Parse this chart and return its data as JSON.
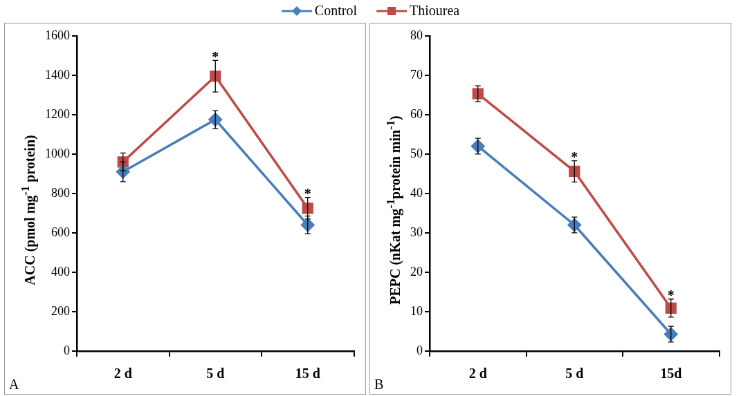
{
  "chart_data": [
    {
      "type": "line",
      "categories": [
        "2 d",
        "5 d",
        "15 d"
      ],
      "ylabel": "ACC (pmol mg$^{-1}$ protein)",
      "ylim": [
        0,
        1600
      ],
      "yticks": [
        0,
        200,
        400,
        600,
        800,
        1000,
        1200,
        1400,
        1600
      ],
      "grid": false,
      "legend": "top",
      "series": [
        {
          "name": "Control",
          "color": "#4a7ebb",
          "marker": "diamond",
          "values": [
            910,
            1175,
            640
          ],
          "errors": [
            50,
            45,
            45
          ]
        },
        {
          "name": "Thiourea",
          "color": "#be4b48",
          "marker": "square",
          "values": [
            960,
            1395,
            725
          ],
          "errors": [
            45,
            80,
            55
          ]
        }
      ],
      "annotations": [
        "A",
        {
          "text": "*",
          "x": "5 d",
          "y": 1475
        },
        {
          "text": "*",
          "x": "15 d",
          "y": 780
        }
      ]
    },
    {
      "type": "line",
      "categories": [
        "2 d",
        "5 d",
        "15d"
      ],
      "ylabel": "PEPC (nKat mg$^{-1}$protein min$^{-1}$)",
      "ylim": [
        0,
        80
      ],
      "yticks": [
        0,
        10,
        20,
        30,
        40,
        50,
        60,
        70,
        80
      ],
      "grid": false,
      "series": [
        {
          "color": "#4a7ebb",
          "marker": "diamond",
          "values": [
            52,
            32,
            4.3
          ],
          "errors": [
            2,
            2,
            2
          ]
        },
        {
          "color": "#be4b48",
          "marker": "square",
          "values": [
            65.3,
            45.6,
            10.9
          ],
          "errors": [
            2,
            2.7,
            2.3
          ]
        }
      ],
      "annotations": [
        "B",
        {
          "text": "*",
          "x": "5 d",
          "y": 48.3
        },
        {
          "text": "*",
          "x": "15d",
          "y": 13.2
        }
      ]
    }
  ]
}
